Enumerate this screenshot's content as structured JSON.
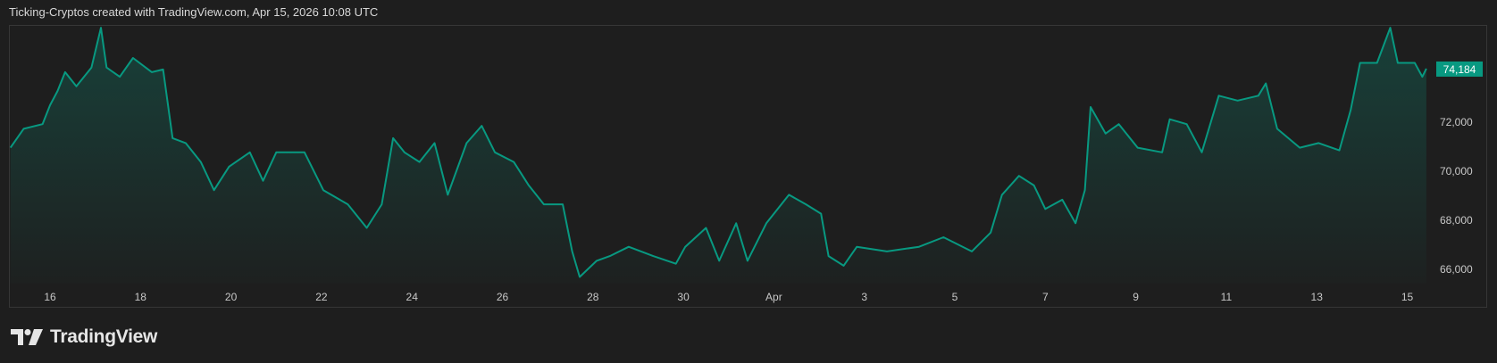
{
  "header": {
    "caption": "Ticking-Cryptos created with TradingView.com, Apr 15, 2026 10:08 UTC"
  },
  "footer": {
    "logo_text": "TradingView"
  },
  "colors": {
    "line": "#089981",
    "background": "#1e1e1e",
    "price_label_bg": "#089981"
  },
  "chart_data": {
    "type": "area",
    "title": "",
    "xlabel": "",
    "ylabel": "",
    "grid": false,
    "ylim": [
      65400,
      76200
    ],
    "x_ticks": [
      {
        "date": "2026-03-16",
        "label": "16"
      },
      {
        "date": "2026-03-18",
        "label": "18"
      },
      {
        "date": "2026-03-20",
        "label": "20"
      },
      {
        "date": "2026-03-22",
        "label": "22"
      },
      {
        "date": "2026-03-24",
        "label": "24"
      },
      {
        "date": "2026-03-26",
        "label": "26"
      },
      {
        "date": "2026-03-28",
        "label": "28"
      },
      {
        "date": "2026-03-30",
        "label": "30"
      },
      {
        "date": "2026-04-01",
        "label": "Apr"
      },
      {
        "date": "2026-04-03",
        "label": "3"
      },
      {
        "date": "2026-04-05",
        "label": "5"
      },
      {
        "date": "2026-04-07",
        "label": "7"
      },
      {
        "date": "2026-04-09",
        "label": "9"
      },
      {
        "date": "2026-04-11",
        "label": "11"
      },
      {
        "date": "2026-04-13",
        "label": "13"
      },
      {
        "date": "2026-04-15",
        "label": "15"
      }
    ],
    "y_ticks": [
      {
        "value": 66000,
        "label": "66,000"
      },
      {
        "value": 68000,
        "label": "68,000"
      },
      {
        "value": 70000,
        "label": "70,000"
      },
      {
        "value": 72000,
        "label": "72,000"
      }
    ],
    "last_price": {
      "value": 74184,
      "label": "74,184"
    },
    "series": [
      {
        "x": [
          "2026-03-15T03:00",
          "2026-03-15T10:00",
          "2026-03-15T20:00",
          "2026-03-16T00:00",
          "2026-03-16T04:00",
          "2026-03-16T08:00",
          "2026-03-16T14:00",
          "2026-03-16T22:00",
          "2026-03-17T03:00",
          "2026-03-17T06:00",
          "2026-03-17T13:00",
          "2026-03-17T20:00",
          "2026-03-18T06:00",
          "2026-03-18T12:00",
          "2026-03-18T17:00",
          "2026-03-19T00:00",
          "2026-03-19T08:00",
          "2026-03-19T15:00",
          "2026-03-19T23:00",
          "2026-03-20T10:00",
          "2026-03-20T17:00",
          "2026-03-21T00:00",
          "2026-03-21T15:00",
          "2026-03-22T01:00",
          "2026-03-22T14:00",
          "2026-03-23T00:00",
          "2026-03-23T08:00",
          "2026-03-23T14:00",
          "2026-03-23T20:00",
          "2026-03-24T04:00",
          "2026-03-24T12:00",
          "2026-03-24T19:00",
          "2026-03-25T05:00",
          "2026-03-25T13:00",
          "2026-03-25T20:00",
          "2026-03-26T06:00",
          "2026-03-26T14:00",
          "2026-03-26T22:00",
          "2026-03-27T08:00",
          "2026-03-27T13:00",
          "2026-03-27T17:00",
          "2026-03-28T02:00",
          "2026-03-28T09:00",
          "2026-03-28T19:00",
          "2026-03-29T08:00",
          "2026-03-29T20:00",
          "2026-03-30T01:00",
          "2026-03-30T12:00",
          "2026-03-30T19:00",
          "2026-03-31T04:00",
          "2026-03-31T10:00",
          "2026-03-31T20:00",
          "2026-04-01T08:00",
          "2026-04-01T17:00",
          "2026-04-02T01:00",
          "2026-04-02T05:00",
          "2026-04-02T13:00",
          "2026-04-02T20:00",
          "2026-04-03T12:00",
          "2026-04-04T05:00",
          "2026-04-04T18:00",
          "2026-04-05T09:00",
          "2026-04-05T19:00",
          "2026-04-06T01:00",
          "2026-04-06T10:00",
          "2026-04-06T18:00",
          "2026-04-07T00:00",
          "2026-04-07T09:00",
          "2026-04-07T16:00",
          "2026-04-07T21:00",
          "2026-04-08T00:00",
          "2026-04-08T08:00",
          "2026-04-08T15:00",
          "2026-04-09T01:00",
          "2026-04-09T14:00",
          "2026-04-09T18:00",
          "2026-04-10T03:00",
          "2026-04-10T11:00",
          "2026-04-10T20:00",
          "2026-04-11T06:00",
          "2026-04-11T17:00",
          "2026-04-11T21:00",
          "2026-04-12T03:00",
          "2026-04-12T15:00",
          "2026-04-13T01:00",
          "2026-04-13T12:00",
          "2026-04-13T18:00",
          "2026-04-13T23:00",
          "2026-04-14T08:00",
          "2026-04-14T15:00",
          "2026-04-14T19:00",
          "2026-04-15T04:00",
          "2026-04-15T08:00",
          "2026-04-15T10:08"
        ],
        "y": [
          70960,
          71730,
          71920,
          72690,
          73270,
          74040,
          73460,
          74230,
          75850,
          74230,
          73850,
          74620,
          74040,
          74150,
          71350,
          71150,
          70380,
          69230,
          70190,
          70770,
          69610,
          70770,
          70770,
          69230,
          68650,
          67690,
          68650,
          71350,
          70770,
          70380,
          71150,
          69040,
          71150,
          71850,
          70770,
          70380,
          69420,
          68650,
          68650,
          66730,
          65690,
          66350,
          66540,
          66920,
          66540,
          66230,
          66920,
          67690,
          66350,
          67880,
          66350,
          67880,
          69040,
          68650,
          68270,
          66540,
          66150,
          66920,
          66730,
          66920,
          67310,
          66730,
          67500,
          69040,
          69810,
          69420,
          68460,
          68840,
          67880,
          69230,
          72620,
          71540,
          71920,
          70960,
          70770,
          72120,
          71920,
          70770,
          73080,
          72880,
          73080,
          73580,
          71730,
          70960,
          71150,
          70850,
          72500,
          74420,
          74420,
          75850,
          74420,
          74420,
          73850,
          74184
        ]
      }
    ]
  }
}
